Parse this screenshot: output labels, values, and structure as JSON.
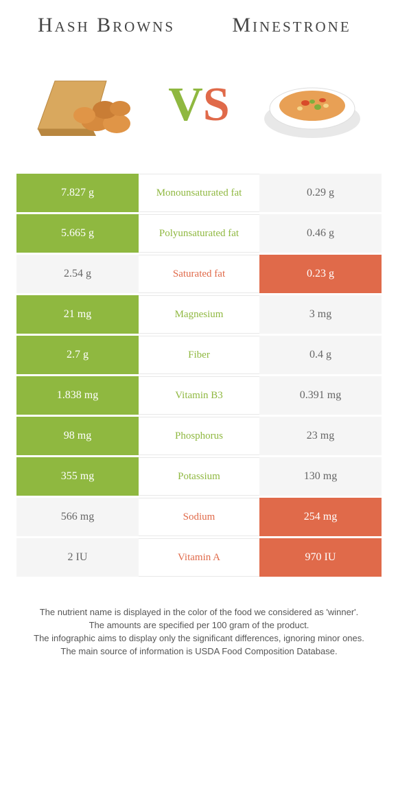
{
  "titles": {
    "left": "Hash Browns",
    "right": "Minestrone"
  },
  "vs": {
    "v": "V",
    "s": "S"
  },
  "colors": {
    "green": "#8fb840",
    "orange": "#e06a4a",
    "light": "#f5f5f5"
  },
  "rows": [
    {
      "left": "7.827 g",
      "mid": "Monounsaturated fat",
      "right": "0.29 g",
      "winner": "left"
    },
    {
      "left": "5.665 g",
      "mid": "Polyunsaturated fat",
      "right": "0.46 g",
      "winner": "left"
    },
    {
      "left": "2.54 g",
      "mid": "Saturated fat",
      "right": "0.23 g",
      "winner": "right"
    },
    {
      "left": "21 mg",
      "mid": "Magnesium",
      "right": "3 mg",
      "winner": "left"
    },
    {
      "left": "2.7 g",
      "mid": "Fiber",
      "right": "0.4 g",
      "winner": "left"
    },
    {
      "left": "1.838 mg",
      "mid": "Vitamin B3",
      "right": "0.391 mg",
      "winner": "left"
    },
    {
      "left": "98 mg",
      "mid": "Phosphorus",
      "right": "23 mg",
      "winner": "left"
    },
    {
      "left": "355 mg",
      "mid": "Potassium",
      "right": "130 mg",
      "winner": "left"
    },
    {
      "left": "566 mg",
      "mid": "Sodium",
      "right": "254 mg",
      "winner": "right"
    },
    {
      "left": "2 IU",
      "mid": "Vitamin A",
      "right": "970 IU",
      "winner": "right"
    }
  ],
  "footer": [
    "The nutrient name is displayed in the color of the food we considered as 'winner'.",
    "The amounts are specified per 100 gram of the product.",
    "The infographic aims to display only the significant differences, ignoring minor ones.",
    "The main source of information is USDA Food Composition Database."
  ]
}
